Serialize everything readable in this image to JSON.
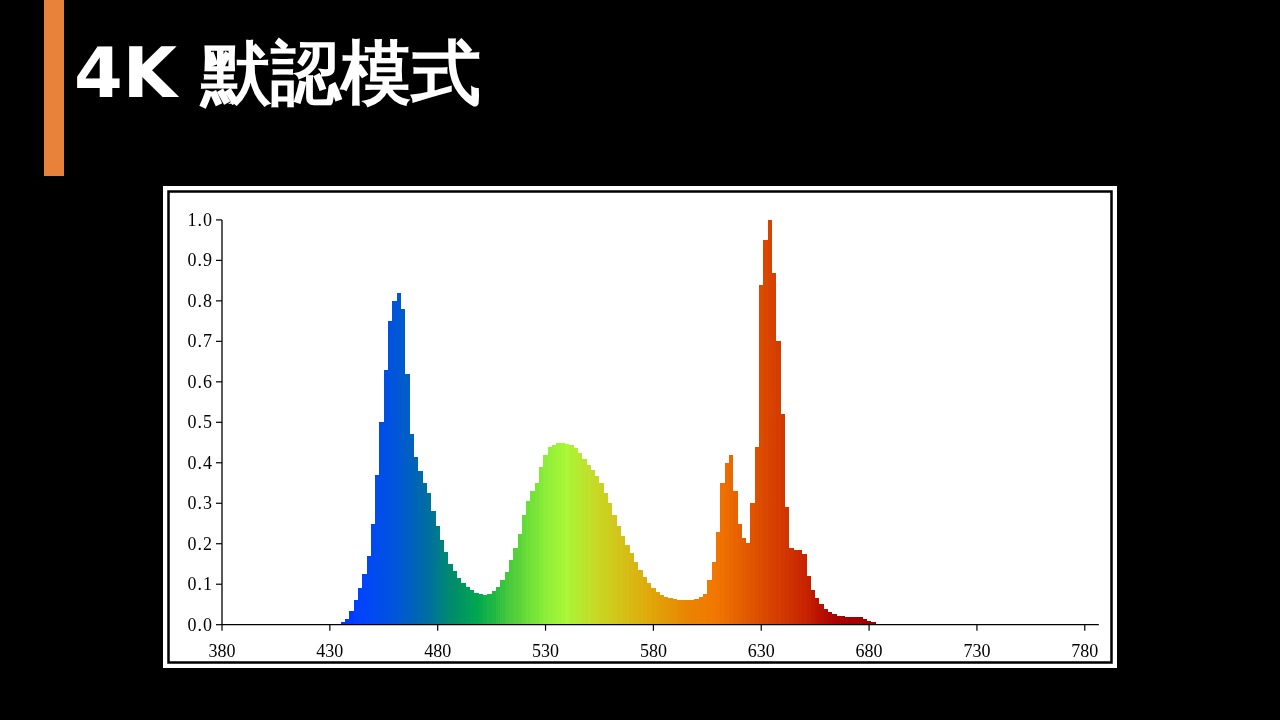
{
  "chart_data": {
    "type": "histogram",
    "title": "4K 默認模式",
    "bins": [
      435,
      437,
      439,
      441,
      443,
      445,
      447,
      449,
      451,
      453,
      455,
      457,
      459,
      461,
      463,
      465,
      467,
      469,
      471,
      473,
      475,
      477,
      479,
      481,
      483,
      485,
      487,
      489,
      491,
      493,
      495,
      497,
      499,
      501,
      503,
      505,
      507,
      509,
      511,
      513,
      515,
      517,
      519,
      521,
      523,
      525,
      527,
      529,
      531,
      533,
      535,
      537,
      539,
      541,
      543,
      545,
      547,
      549,
      551,
      553,
      555,
      557,
      559,
      561,
      563,
      565,
      567,
      569,
      571,
      573,
      575,
      577,
      579,
      581,
      583,
      585,
      587,
      589,
      591,
      593,
      595,
      597,
      599,
      601,
      603,
      605,
      607,
      609,
      611,
      613,
      615,
      617,
      619,
      621,
      623,
      625,
      627,
      629,
      631,
      633,
      635,
      637,
      639,
      641,
      643,
      645,
      647,
      649,
      651,
      653,
      655,
      657,
      659,
      661,
      663,
      665,
      667,
      669,
      671,
      673,
      675,
      677,
      679,
      681,
      683
    ],
    "values": [
      0.006,
      0.015,
      0.035,
      0.06,
      0.09,
      0.125,
      0.17,
      0.25,
      0.37,
      0.5,
      0.63,
      0.75,
      0.8,
      0.82,
      0.78,
      0.62,
      0.47,
      0.415,
      0.38,
      0.35,
      0.325,
      0.28,
      0.245,
      0.21,
      0.18,
      0.15,
      0.132,
      0.115,
      0.102,
      0.093,
      0.086,
      0.079,
      0.075,
      0.074,
      0.077,
      0.083,
      0.093,
      0.11,
      0.131,
      0.16,
      0.19,
      0.225,
      0.27,
      0.305,
      0.33,
      0.35,
      0.39,
      0.418,
      0.438,
      0.445,
      0.448,
      0.449,
      0.447,
      0.444,
      0.437,
      0.425,
      0.41,
      0.395,
      0.383,
      0.367,
      0.35,
      0.325,
      0.3,
      0.27,
      0.245,
      0.22,
      0.198,
      0.177,
      0.155,
      0.135,
      0.118,
      0.103,
      0.09,
      0.08,
      0.073,
      0.068,
      0.065,
      0.063,
      0.062,
      0.061,
      0.06,
      0.062,
      0.064,
      0.068,
      0.075,
      0.11,
      0.155,
      0.23,
      0.35,
      0.4,
      0.42,
      0.33,
      0.25,
      0.215,
      0.203,
      0.3,
      0.44,
      0.84,
      0.95,
      1.0,
      0.87,
      0.7,
      0.52,
      0.29,
      0.19,
      0.185,
      0.185,
      0.175,
      0.12,
      0.085,
      0.065,
      0.05,
      0.04,
      0.032,
      0.026,
      0.022,
      0.021,
      0.02,
      0.02,
      0.02,
      0.018,
      0.013,
      0.01,
      0.006
    ],
    "colors": [
      "#0036ff",
      "#0039ff",
      "#003cff",
      "#0040ff",
      "#0044fc",
      "#0046f8",
      "#0048f4",
      "#004af0",
      "#004cec",
      "#004ee8",
      "#0050e4",
      "#0052e0",
      "#0055da",
      "#0058d4",
      "#005bcc",
      "#005ec4",
      "#0061bc",
      "#0064b4",
      "#0068ac",
      "#006ca4",
      "#00709c",
      "#007494",
      "#007a8c",
      "#00807e",
      "#008676",
      "#008a6e",
      "#008e68",
      "#009262",
      "#00985c",
      "#009e58",
      "#00a254",
      "#00a650",
      "#08aa4e",
      "#10b04a",
      "#18b446",
      "#20b844",
      "#2cbc42",
      "#38c240",
      "#44c83e",
      "#4ccc3c",
      "#54d03a",
      "#5cd438",
      "#64da38",
      "#6cde38",
      "#74e238",
      "#7ce638",
      "#84ea38",
      "#8cee38",
      "#94f038",
      "#9af238",
      "#a0f438",
      "#a6f638",
      "#acf838",
      "#b0f034",
      "#b4ec32",
      "#b8e830",
      "#bce42e",
      "#c0e02c",
      "#c4dc28",
      "#c8d824",
      "#cad420",
      "#ccd01e",
      "#cecc1c",
      "#d0c81a",
      "#d2c418",
      "#d4c016",
      "#d6bc14",
      "#d8b812",
      "#dab410",
      "#dcb00e",
      "#deac0c",
      "#e0a80a",
      "#e0a408",
      "#e2a008",
      "#e29c06",
      "#e49806",
      "#e49404",
      "#e69004",
      "#e68c02",
      "#e88802",
      "#e88400",
      "#ea8200",
      "#ec8000",
      "#ee7e00",
      "#f07c00",
      "#f07a00",
      "#f07800",
      "#f07400",
      "#ee7000",
      "#ec6c00",
      "#ea6800",
      "#e86400",
      "#e66000",
      "#e45c00",
      "#e25800",
      "#e05400",
      "#de5000",
      "#dc4c00",
      "#da4800",
      "#d84400",
      "#d64000",
      "#d43c00",
      "#d23800",
      "#d03400",
      "#ce3000",
      "#cc2c00",
      "#ca2800",
      "#c82400",
      "#c42000",
      "#c01a00",
      "#bc1400",
      "#b81000",
      "#b40c00",
      "#b00800",
      "#ac0400",
      "#aa0200",
      "#a80000",
      "#a60000",
      "#a40000",
      "#a20000",
      "#a00000",
      "#a00000",
      "#a00000",
      "#a00000"
    ],
    "xlim": [
      380,
      786.5
    ],
    "xticks": [
      380,
      430,
      480,
      530,
      580,
      630,
      680,
      730,
      780
    ],
    "ylim": [
      0,
      1
    ],
    "yticks": [
      {
        "value": 0,
        "label": "0.0"
      },
      0.1,
      0.2,
      0.3,
      0.4,
      0.5,
      0.6,
      0.7,
      0.8,
      0.9,
      {
        "value": 1,
        "label": "1.0"
      }
    ]
  }
}
